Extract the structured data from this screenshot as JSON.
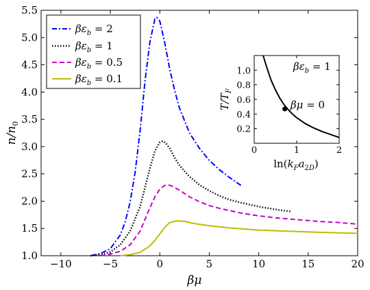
{
  "chart_data": [
    {
      "type": "line",
      "title": "",
      "xlabel": "βμ",
      "ylabel": "n/n₀",
      "xlim": [
        -12,
        20
      ],
      "ylim": [
        1.0,
        5.5
      ],
      "xticks": [
        -10,
        -5,
        0,
        5,
        10,
        15,
        20
      ],
      "xtick_labels": [
        "−10",
        "−5",
        "0",
        "5",
        "10",
        "15",
        "20"
      ],
      "yticks": [
        1.0,
        1.5,
        2.0,
        2.5,
        3.0,
        3.5,
        4.0,
        4.5,
        5.0,
        5.5
      ],
      "ytick_labels": [
        "1.0",
        "1.5",
        "2.0",
        "2.5",
        "3.0",
        "3.5",
        "4.0",
        "4.5",
        "5.0",
        "5.5"
      ],
      "legend_position": "top-left",
      "series": [
        {
          "name": "βε_b = 2",
          "color": "#0000ff",
          "dash": "dashdot",
          "x": [
            -7,
            -6,
            -5,
            -4,
            -3.5,
            -3,
            -2.5,
            -2,
            -1.5,
            -1,
            -0.5,
            -0.3,
            0,
            0.5,
            1,
            1.5,
            2,
            3,
            4,
            5,
            6,
            7,
            8.2
          ],
          "y": [
            1.0,
            1.04,
            1.13,
            1.38,
            1.62,
            1.98,
            2.53,
            3.28,
            4.2,
            4.92,
            5.34,
            5.37,
            5.3,
            4.9,
            4.42,
            4.03,
            3.7,
            3.25,
            2.97,
            2.75,
            2.58,
            2.44,
            2.29
          ]
        },
        {
          "name": "βε_b = 1",
          "color": "#000000",
          "dash": "dotted",
          "x": [
            -7,
            -6,
            -5,
            -4,
            -3,
            -2,
            -1.5,
            -1,
            -0.5,
            0,
            0.3,
            0.6,
            1,
            1.5,
            2,
            3,
            4,
            5,
            6,
            7,
            8,
            9,
            10,
            11,
            12,
            13.3
          ],
          "y": [
            1.0,
            1.02,
            1.07,
            1.2,
            1.45,
            1.9,
            2.25,
            2.6,
            2.92,
            3.08,
            3.1,
            3.07,
            2.97,
            2.8,
            2.65,
            2.45,
            2.3,
            2.19,
            2.1,
            2.03,
            1.98,
            1.94,
            1.9,
            1.87,
            1.84,
            1.81
          ]
        },
        {
          "name": "βε_b = 0.5",
          "color": "#c800c8",
          "dash": "dashed",
          "x": [
            -6,
            -5,
            -4,
            -3,
            -2,
            -1,
            -0.5,
            0,
            0.5,
            0.8,
            1.2,
            2,
            3,
            4,
            5,
            6,
            8,
            10,
            12,
            14,
            16,
            18,
            20
          ],
          "y": [
            1.0,
            1.03,
            1.08,
            1.2,
            1.45,
            1.88,
            2.08,
            2.22,
            2.29,
            2.3,
            2.28,
            2.2,
            2.08,
            1.99,
            1.92,
            1.87,
            1.79,
            1.73,
            1.69,
            1.66,
            1.63,
            1.61,
            1.58
          ]
        },
        {
          "name": "βε_b = 0.1",
          "color": "#bdbd00",
          "dash": "solid",
          "x": [
            -4,
            -3,
            -2,
            -1,
            -0.5,
            0,
            0.5,
            1,
            1.7,
            2.5,
            3.5,
            5,
            7,
            10,
            13,
            16,
            18,
            20
          ],
          "y": [
            1.0,
            1.02,
            1.06,
            1.18,
            1.28,
            1.4,
            1.52,
            1.61,
            1.64,
            1.63,
            1.59,
            1.55,
            1.51,
            1.47,
            1.45,
            1.43,
            1.42,
            1.41
          ]
        }
      ]
    },
    {
      "type": "line",
      "title": "",
      "xlabel": "ln(k_F a_2D)",
      "ylabel": "T/T_F",
      "xlim": [
        0,
        2
      ],
      "ylim": [
        0,
        1.2
      ],
      "xticks": [
        0,
        1,
        2
      ],
      "xtick_labels": [
        "0",
        "1",
        "2"
      ],
      "yticks": [
        0.2,
        0.4,
        0.6,
        0.8,
        1.0
      ],
      "ytick_labels": [
        "0.2",
        "0.4",
        "0.6",
        "0.8",
        "1.0"
      ],
      "series": [
        {
          "name": "",
          "color": "#000000",
          "dash": "solid",
          "x": [
            0.21,
            0.3,
            0.4,
            0.5,
            0.6,
            0.7,
            0.8,
            0.9,
            1.0,
            1.2,
            1.4,
            1.6,
            1.8,
            2.0
          ],
          "y": [
            1.2,
            1.03,
            0.86,
            0.73,
            0.62,
            0.53,
            0.46,
            0.4,
            0.35,
            0.27,
            0.21,
            0.16,
            0.12,
            0.08
          ]
        }
      ],
      "marker": {
        "x": 0.72,
        "y": 0.47,
        "label": "βμ = 0"
      },
      "annotation": "βε_b = 1"
    }
  ]
}
